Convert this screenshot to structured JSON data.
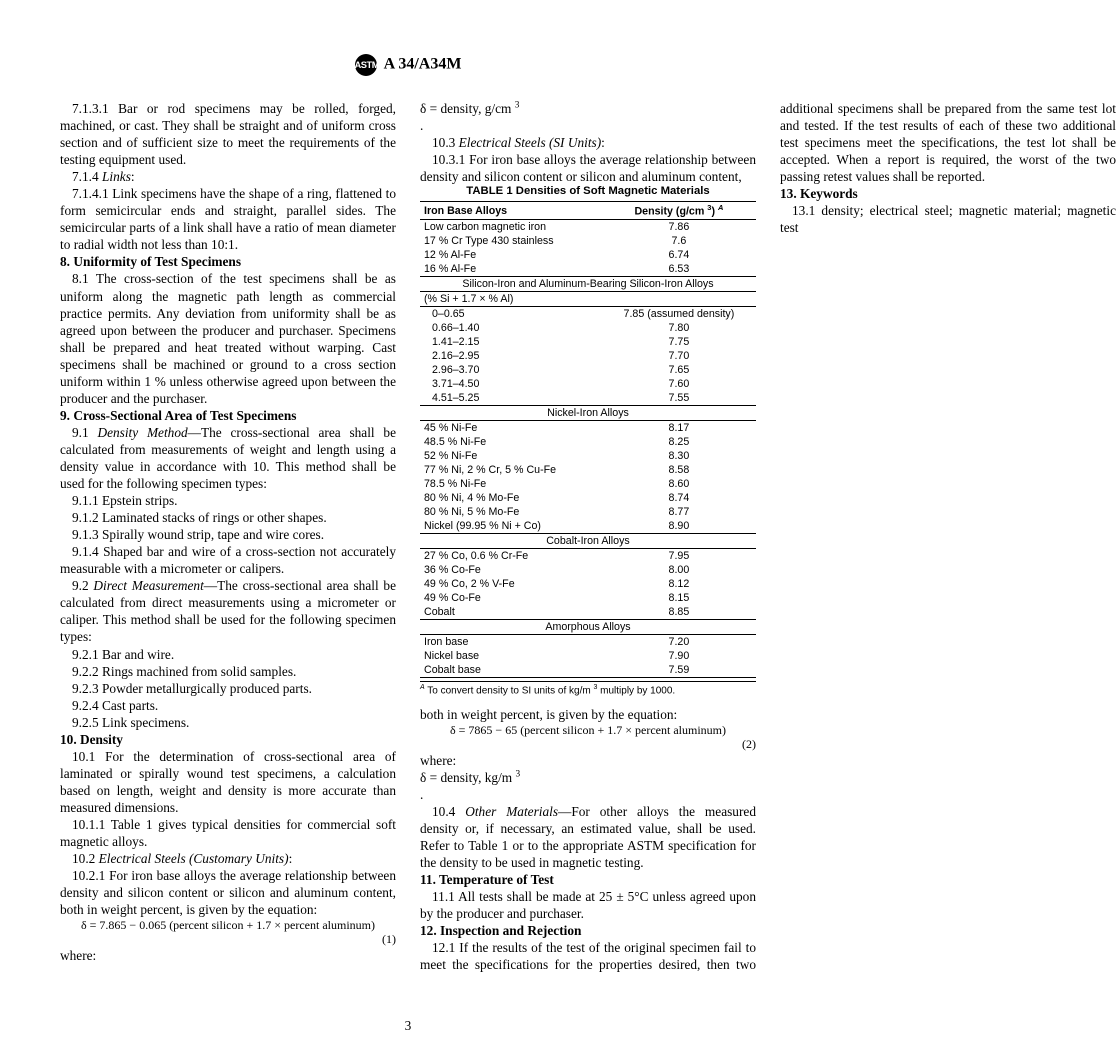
{
  "header": {
    "logo_text": "ASTM",
    "standard": "A 34/A34M"
  },
  "left": {
    "p7131": "7.1.3.1 Bar or rod specimens may be rolled, forged, machined, or cast. They shall be straight and of uniform cross section and of sufficient size to meet the requirements of the testing equipment used.",
    "p714": "7.1.4 ",
    "p714_i": "Links",
    "p714_colon": ":",
    "p7141": "7.1.4.1 Link specimens have the shape of a ring, flattened to form semicircular ends and straight, parallel sides. The semicircular parts of a link shall have a ratio of mean diameter to radial width not less than 10:1.",
    "s8": "8. Uniformity of Test Specimens",
    "p81": "8.1 The cross-section of the test specimens shall be as uniform along the magnetic path length as commercial practice permits. Any deviation from uniformity shall be as agreed upon between the producer and purchaser. Specimens shall be prepared and heat treated without warping. Cast specimens shall be machined or ground to a cross section uniform within 1 % unless otherwise agreed upon between the producer and the purchaser.",
    "s9": "9. Cross-Sectional Area of Test Specimens",
    "p91a": "9.1 ",
    "p91_i": "Density Method",
    "p91b": "—The cross-sectional area shall be calculated from measurements of weight and length using a density value in accordance with 10. This method shall be used for the following specimen types:",
    "p911": "9.1.1 Epstein strips.",
    "p912": "9.1.2 Laminated stacks of rings or other shapes.",
    "p913": "9.1.3 Spirally wound strip, tape and wire cores.",
    "p914": "9.1.4 Shaped bar and wire of a cross-section not accurately measurable with a micrometer or calipers.",
    "p92a": "9.2 ",
    "p92_i": "Direct Measurement",
    "p92b": "—The cross-sectional area shall be calculated from direct measurements using a micrometer or caliper. This method shall be used for the following specimen types:",
    "p921": "9.2.1 Bar and wire.",
    "p922": "9.2.2 Rings machined from solid samples.",
    "p923": "9.2.3 Powder metallurgically produced parts.",
    "p924": "9.2.4 Cast parts.",
    "p925": "9.2.5 Link specimens.",
    "s10": "10. Density",
    "p101": "10.1 For the determination of cross-sectional area of laminated or spirally wound test specimens, a calculation based on length, weight and density is more accurate than measured dimensions.",
    "p1011": "10.1.1 Table 1 gives typical densities for commercial soft magnetic alloys.",
    "p102a": "10.2 ",
    "p102_i": "Electrical Steels (Customary Units)",
    "p102_colon": ":",
    "p1021": "10.2.1 For iron base alloys the average relationship between density and silicon content or silicon and aluminum content, both in weight percent, is given by the equation:",
    "eq1": "δ = 7.865 − 0.065 (percent silicon + 1.7 × percent aluminum)",
    "eq1_num": "(1)",
    "where1": "where:",
    "where1b": "δ   =  density, g/cm ",
    "where1c": "3",
    "dot1": ".",
    "p103a": "10.3 ",
    "p103_i": "Electrical Steels (SI Units)",
    "p103_colon": ":",
    "p1031": "10.3.1 For iron base alloys the average relationship between density and silicon content or silicon and aluminum content,"
  },
  "right": {
    "contline": "both in weight percent, is given by the equation:",
    "eq2": "δ = 7865 − 65 (percent silicon + 1.7 × percent aluminum)",
    "eq2_num": "(2)",
    "where2": "where:",
    "where2b": "δ   =  density, kg/m ",
    "where2c": "3",
    "dot2": ".",
    "p104a": "10.4 ",
    "p104_i": "Other Materials",
    "p104b": "—For other alloys the measured density or, if necessary, an estimated value, shall be used. Refer to Table 1 or to the appropriate ASTM specification for the density to be used in magnetic testing.",
    "s11": "11. Temperature of Test",
    "p111": "11.1 All tests shall be made at 25 ± 5°C unless agreed upon by the producer and purchaser.",
    "s12": "12. Inspection and Rejection",
    "p121": "12.1 If the results of the test of the original specimen fail to meet the specifications for the properties desired, then two additional specimens shall be prepared from the same test lot and tested. If the test results of each of these two additional test specimens meet the specifications, the test lot shall be accepted. When a report is required, the worst of the two passing retest values shall be reported.",
    "s13": "13. Keywords",
    "p131": "13.1 density; electrical steel; magnetic material; magnetic test"
  },
  "table": {
    "title": "TABLE 1  Densities of Soft Magnetic Materials",
    "col1": "Iron Base Alloys",
    "col2a": "Density (g/cm ",
    "col2b": "3",
    "col2c": ") ",
    "col2d": "A",
    "iron_rows": [
      [
        "Low carbon magnetic iron",
        "7.86"
      ],
      [
        "17 % Cr Type 430 stainless",
        "7.6"
      ],
      [
        "12 % Al-Fe",
        "6.74"
      ],
      [
        "16 % Al-Fe",
        "6.53"
      ]
    ],
    "si_head": "Silicon-Iron and Aluminum-Bearing Silicon-Iron Alloys",
    "si_sub": "(% Si + 1.7 × % Al)",
    "si_rows": [
      [
        "0–0.65",
        "7.85 (assumed density)"
      ],
      [
        "0.66–1.40",
        "7.80"
      ],
      [
        "1.41–2.15",
        "7.75"
      ],
      [
        "2.16–2.95",
        "7.70"
      ],
      [
        "2.96–3.70",
        "7.65"
      ],
      [
        "3.71–4.50",
        "7.60"
      ],
      [
        "4.51–5.25",
        "7.55"
      ]
    ],
    "ni_head": "Nickel-Iron Alloys",
    "ni_rows": [
      [
        "45 % Ni-Fe",
        "8.17"
      ],
      [
        "48.5 % Ni-Fe",
        "8.25"
      ],
      [
        "52 % Ni-Fe",
        "8.30"
      ],
      [
        "77 % Ni, 2 % Cr, 5 % Cu-Fe",
        "8.58"
      ],
      [
        "78.5 % Ni-Fe",
        "8.60"
      ],
      [
        "80 % Ni, 4 % Mo-Fe",
        "8.74"
      ],
      [
        "80 % Ni, 5 % Mo-Fe",
        "8.77"
      ],
      [
        "Nickel (99.95 % Ni + Co)",
        "8.90"
      ]
    ],
    "co_head": "Cobalt-Iron Alloys",
    "co_rows": [
      [
        "27 % Co, 0.6 % Cr-Fe",
        "7.95"
      ],
      [
        "36 % Co-Fe",
        "8.00"
      ],
      [
        "49 % Co, 2 % V-Fe",
        "8.12"
      ],
      [
        "49 % Co-Fe",
        "8.15"
      ],
      [
        "Cobalt",
        "8.85"
      ]
    ],
    "am_head": "Amorphous Alloys",
    "am_rows": [
      [
        "Iron base",
        "7.20"
      ],
      [
        "Nickel base",
        "7.90"
      ],
      [
        "Cobalt base",
        "7.59"
      ]
    ],
    "footnote_a": "A",
    "footnote": " To convert density to SI units of kg/m ",
    "footnote_sup": "3",
    "footnote2": " multiply by 1000."
  },
  "pagenum": "3"
}
